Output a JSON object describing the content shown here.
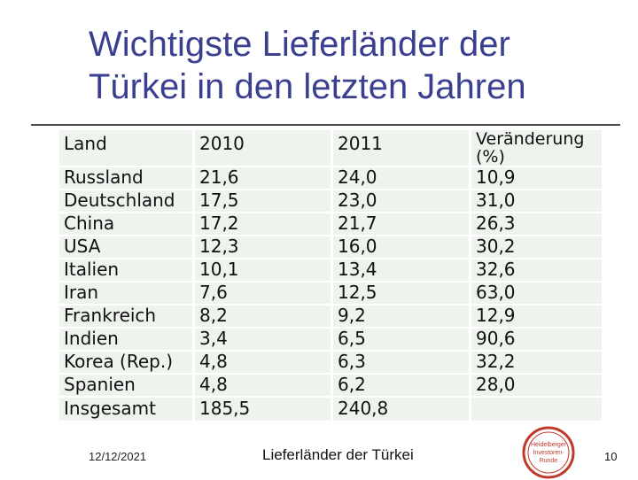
{
  "slide": {
    "title_line1": "Wichtigste Lieferländer der",
    "title_line2": "Türkei in den letzten Jahren"
  },
  "table": {
    "headers": [
      "Land",
      "2010",
      "2011",
      "Veränderung (%)"
    ],
    "rows": [
      [
        "Russland",
        "21,6",
        "24,0",
        "10,9"
      ],
      [
        "Deutschland",
        "17,5",
        "23,0",
        "31,0"
      ],
      [
        "China",
        "17,2",
        "21,7",
        "26,3"
      ],
      [
        "USA",
        "12,3",
        "16,0",
        "30,2"
      ],
      [
        "Italien",
        "10,1",
        "13,4",
        "32,6"
      ],
      [
        "Iran",
        "7,6",
        "12,5",
        "63,0"
      ],
      [
        "Frankreich",
        "8,2",
        "9,2",
        "12,9"
      ],
      [
        "Indien",
        "3,4",
        "6,5",
        "90,6"
      ],
      [
        "Korea (Rep.)",
        "4,8",
        "6,3",
        "32,2"
      ],
      [
        "Spanien",
        "4,8",
        "6,2",
        "28,0"
      ],
      [
        "Insgesamt",
        "185,5",
        "240,8",
        ""
      ]
    ]
  },
  "footer": {
    "date": "12/12/2021",
    "center": "Lieferländer der Türkei",
    "page": "10"
  },
  "logo": {
    "line1": "Heidelberger",
    "line2": "Investoren-",
    "line3": "Runde",
    "color": "#c0392b"
  }
}
